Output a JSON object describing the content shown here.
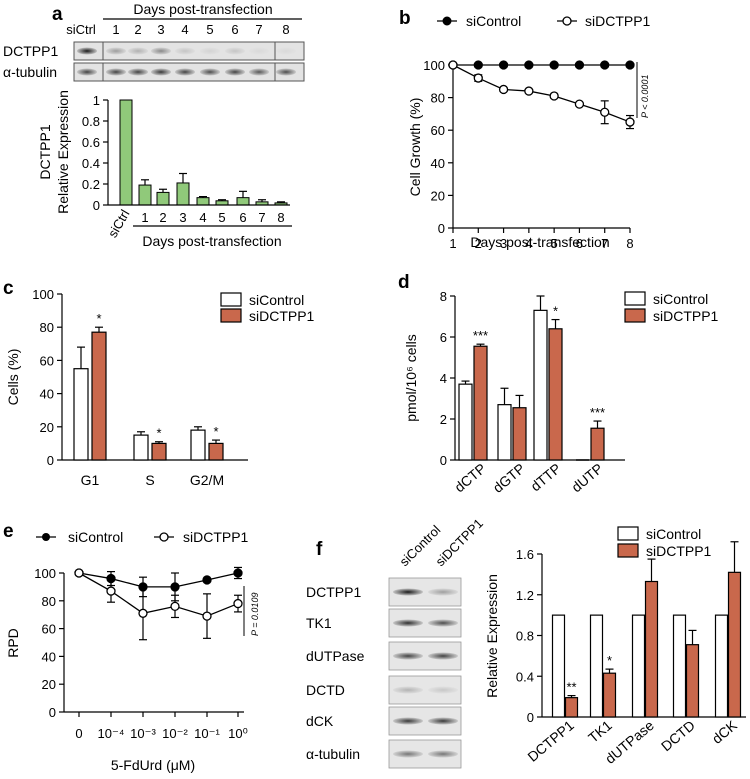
{
  "colors": {
    "green": "#90c97a",
    "red": "#c9684c",
    "white": "#ffffff",
    "black": "#000000"
  },
  "panels": {
    "a": {
      "label": "a",
      "blot": {
        "header": "Days post-transfection",
        "lanes": [
          "siCtrl",
          "1",
          "2",
          "3",
          "4",
          "5",
          "6",
          "7",
          "8"
        ],
        "rows": [
          "DCTPP1",
          "α-tubulin"
        ],
        "intensities": {
          "DCTPP1": [
            1.0,
            0.35,
            0.25,
            0.45,
            0.15,
            0.08,
            0.15,
            0.05,
            0.05
          ],
          "α-tubulin": [
            0.8,
            0.8,
            0.8,
            0.85,
            0.8,
            0.75,
            0.8,
            0.7,
            0.75
          ]
        }
      }
    },
    "b": {
      "label": "b",
      "pvalue": "P < 0.0001"
    },
    "c": {
      "label": "c"
    },
    "d": {
      "label": "d"
    },
    "e": {
      "label": "e",
      "pvalue": "P = 0.0109"
    },
    "f": {
      "label": "f",
      "blot": {
        "lanes": [
          "siControl",
          "siDCTPP1"
        ],
        "rows": [
          "DCTPP1",
          "TK1",
          "dUTPase",
          "DCTD",
          "dCK",
          "α-tubulin"
        ],
        "intensities": {
          "DCTPP1": [
            1.0,
            0.35
          ],
          "TK1": [
            0.9,
            0.75
          ],
          "dUTPase": [
            0.8,
            0.8
          ],
          "DCTD": [
            0.25,
            0.15
          ],
          "dCK": [
            0.85,
            0.85
          ],
          "α-tubulin": [
            0.55,
            0.55
          ]
        }
      }
    }
  },
  "chart_data": [
    {
      "id": "a",
      "type": "bar",
      "categories": [
        "siCtrl",
        "1",
        "2",
        "3",
        "4",
        "5",
        "6",
        "7",
        "8"
      ],
      "values": [
        1.0,
        0.19,
        0.12,
        0.21,
        0.07,
        0.04,
        0.07,
        0.03,
        0.02
      ],
      "errors": [
        0,
        0.05,
        0.03,
        0.09,
        0.01,
        0.01,
        0.06,
        0.02,
        0.01
      ],
      "ylabel_lines": [
        "DCTPP1",
        "Relative Expression"
      ],
      "xlabel": "Days post-transfection",
      "ylim": [
        0,
        1
      ],
      "yticks": [
        0,
        0.2,
        0.4,
        0.6,
        0.8,
        1
      ],
      "ytick_labels": [
        "0",
        "0.2",
        "0.4",
        "0.6",
        "0.8",
        "1"
      ],
      "color": "#90c97a"
    },
    {
      "id": "b",
      "type": "line",
      "x": [
        1,
        2,
        3,
        4,
        5,
        6,
        7,
        8
      ],
      "series": [
        {
          "name": "siControl",
          "values": [
            100,
            100,
            100,
            100,
            100,
            100,
            100,
            100
          ],
          "errors": [
            0,
            0,
            0,
            0,
            0,
            0,
            0,
            0
          ],
          "marker": "filled"
        },
        {
          "name": "siDCTPP1",
          "values": [
            100,
            92,
            85,
            84,
            81,
            76,
            71,
            65
          ],
          "errors": [
            0,
            2,
            1,
            1,
            1,
            1,
            7,
            4
          ],
          "marker": "open"
        }
      ],
      "xlabel": "Days post-transfection",
      "ylabel": "Cell Growth (%)",
      "ylim": [
        0,
        100
      ],
      "yticks": [
        0,
        20,
        40,
        60,
        80,
        100
      ],
      "xticks": [
        "1",
        "2",
        "3",
        "4",
        "5",
        "6",
        "7",
        "8"
      ],
      "annotation": "P < 0.0001"
    },
    {
      "id": "c",
      "type": "bar",
      "categories": [
        "G1",
        "S",
        "G2/M"
      ],
      "series": [
        {
          "name": "siControl",
          "values": [
            55,
            15,
            18
          ],
          "errors": [
            13,
            2,
            2
          ],
          "color": "#ffffff"
        },
        {
          "name": "siDCTPP1",
          "values": [
            77,
            10,
            10
          ],
          "errors": [
            3,
            1,
            2
          ],
          "color": "#c9684c"
        }
      ],
      "significance": [
        "*",
        "*",
        "*"
      ],
      "ylabel": "Cells (%)",
      "ylim": [
        0,
        100
      ],
      "yticks": [
        0,
        20,
        40,
        60,
        80,
        100
      ]
    },
    {
      "id": "d",
      "type": "bar",
      "categories": [
        "dCTP",
        "dGTP",
        "dTTP",
        "dUTP"
      ],
      "series": [
        {
          "name": "siControl",
          "values": [
            3.7,
            2.7,
            7.3,
            0
          ],
          "errors": [
            0.15,
            0.8,
            0.7,
            0
          ],
          "color": "#ffffff"
        },
        {
          "name": "siDCTPP1",
          "values": [
            5.55,
            2.55,
            6.4,
            1.55
          ],
          "errors": [
            0.1,
            0.6,
            0.45,
            0.35
          ],
          "color": "#c9684c"
        }
      ],
      "significance": [
        "***",
        "",
        "*",
        "***"
      ],
      "ylabel": "pmol/10⁶ cells",
      "ylim": [
        0,
        8
      ],
      "yticks": [
        0,
        2,
        4,
        6,
        8
      ]
    },
    {
      "id": "e",
      "type": "line",
      "x": [
        "0",
        "10⁻⁴",
        "10⁻³",
        "10⁻²",
        "10⁻¹",
        "10⁰"
      ],
      "series": [
        {
          "name": "siControl",
          "values": [
            100,
            96,
            90,
            90,
            95,
            100
          ],
          "errors": [
            0,
            5,
            7,
            10,
            0,
            4
          ],
          "marker": "filled"
        },
        {
          "name": "siDCTPP1",
          "values": [
            100,
            87,
            71,
            76,
            69,
            78
          ],
          "errors": [
            0,
            8,
            19,
            8,
            16,
            6
          ],
          "marker": "open"
        }
      ],
      "xlabel": "5-FdUrd (μM)",
      "ylabel": "RPD",
      "ylim": [
        0,
        100
      ],
      "yticks": [
        0,
        20,
        40,
        60,
        80,
        100
      ],
      "annotation": "P = 0.0109"
    },
    {
      "id": "f",
      "type": "bar",
      "categories": [
        "DCTPP1",
        "TK1",
        "dUTPase",
        "DCTD",
        "dCK"
      ],
      "series": [
        {
          "name": "siControl",
          "values": [
            1,
            1,
            1,
            1,
            1
          ],
          "errors": [
            0,
            0,
            0,
            0,
            0
          ],
          "color": "#ffffff"
        },
        {
          "name": "siDCTPP1",
          "values": [
            0.19,
            0.43,
            1.33,
            0.71,
            1.42
          ],
          "errors": [
            0.02,
            0.04,
            0.22,
            0.14,
            0.3
          ],
          "color": "#c9684c"
        }
      ],
      "significance": [
        "**",
        "*",
        "",
        "",
        ""
      ],
      "ylabel": "Relative Expression",
      "ylim": [
        0,
        1.6
      ],
      "yticks": [
        0,
        0.4,
        0.8,
        1.2,
        1.6
      ],
      "ytick_labels": [
        "0",
        "0.4",
        "0.8",
        "1.2",
        "1.6"
      ]
    }
  ]
}
